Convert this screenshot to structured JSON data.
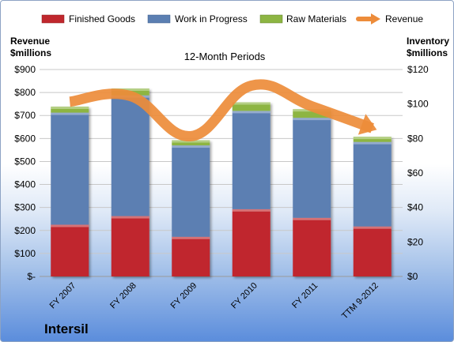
{
  "chart_data": {
    "type": "bar",
    "stacked": true,
    "title": "12-Month Periods",
    "brand": "Intersil",
    "categories": [
      "FY 2007",
      "FY 2008",
      "FY 2009",
      "FY 2010",
      "FY 2011",
      "TTM 9-2012"
    ],
    "series": [
      {
        "name": "Finished Goods",
        "axis": "right",
        "color": "#c0272d",
        "values": [
          30,
          35,
          23,
          39,
          34,
          29
        ]
      },
      {
        "name": "Work in Progress",
        "axis": "right",
        "color": "#5b7fb2",
        "values": [
          65,
          70,
          53,
          57,
          58,
          49
        ]
      },
      {
        "name": "Raw Materials",
        "axis": "right",
        "color": "#8db543",
        "values": [
          3.5,
          4,
          3,
          5,
          5,
          3
        ]
      }
    ],
    "line_series": {
      "name": "Revenue",
      "axis": "left",
      "color": "#ed8c3a",
      "values": [
        760,
        785,
        610,
        830,
        740,
        645
      ]
    },
    "y_left": {
      "label_line1": "Revenue",
      "label_line2": "$millions",
      "min": 0,
      "max": 900,
      "step": 100,
      "tick_labels": [
        "$-",
        "$100",
        "$200",
        "$300",
        "$400",
        "$500",
        "$600",
        "$700",
        "$800",
        "$900"
      ]
    },
    "y_right": {
      "label_line1": "Inventory",
      "label_line2": "$millions",
      "min": 0,
      "max": 120,
      "step": 20,
      "tick_labels": [
        "$0",
        "$20",
        "$40",
        "$60",
        "$80",
        "$100",
        "$120"
      ]
    },
    "grid": true,
    "legend_position": "top"
  }
}
